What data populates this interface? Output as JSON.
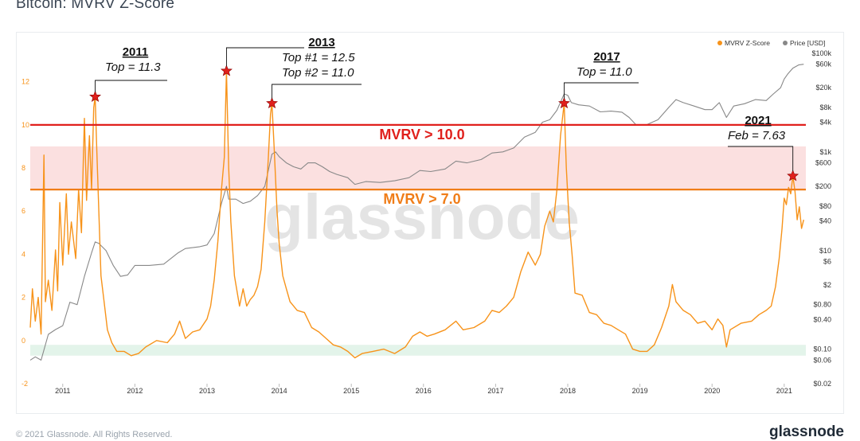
{
  "page": {
    "title": "Bitcoin: MVRV Z-Score",
    "watermark": "glassnode",
    "footer_copyright": "© 2021 Glassnode. All Rights Reserved.",
    "footer_brand": "glassnode"
  },
  "chart_data": {
    "type": "line",
    "title": "Bitcoin: MVRV Z-Score",
    "xlabel": "",
    "ylabel_left": "",
    "ylabel_right": "",
    "x_ticks": [
      "2011",
      "2012",
      "2013",
      "2014",
      "2015",
      "2016",
      "2017",
      "2018",
      "2019",
      "2020",
      "2021"
    ],
    "y_left_ticks": [
      -2,
      0,
      2,
      4,
      6,
      8,
      10,
      12
    ],
    "y_left_range": [
      -2,
      13.5
    ],
    "y_right_ticks": [
      "$100k",
      "$60k",
      "$20k",
      "$8k",
      "$4k",
      "$1k",
      "$600",
      "$200",
      "$80",
      "$40",
      "$10",
      "$6",
      "$2",
      "$0.80",
      "$0.40",
      "$0.10",
      "$0.06",
      "$0.02"
    ],
    "y_right_values": [
      100000,
      60000,
      20000,
      8000,
      4000,
      1000,
      600,
      200,
      80,
      40,
      10,
      6,
      2,
      0.8,
      0.4,
      0.1,
      0.06,
      0.02
    ],
    "y_right_range_log": [
      0.02,
      120000
    ],
    "x_range": [
      2010.55,
      2021.3
    ],
    "legend": {
      "placement": "top-right",
      "items": [
        {
          "name": "MVRV Z-Score",
          "color": "#f7931a"
        },
        {
          "name": "Price [USD]",
          "color": "#888888"
        }
      ]
    },
    "thresholds": [
      {
        "label": "MVRV > 10.0",
        "value": 10.0,
        "color": "#e0201c"
      },
      {
        "label": "MVRV > 7.0",
        "value": 7.0,
        "color": "#f07d18"
      }
    ],
    "bands": [
      {
        "from": 7.0,
        "to": 9.0,
        "color": "#fbe0e0"
      },
      {
        "from": -0.7,
        "to": -0.2,
        "color": "#e3f4ea"
      }
    ],
    "annotations": [
      {
        "year": "2011",
        "lines": [
          "Top = 11.3"
        ],
        "x": 2011.45,
        "y": 11.3
      },
      {
        "year": "2013",
        "lines": [
          "Top #1 = 12.5",
          "Top #2 = 11.0"
        ],
        "x": 2013.27,
        "y": 12.5
      },
      {
        "year": "",
        "lines": [],
        "x": 2013.9,
        "y": 11.0
      },
      {
        "year": "2017",
        "lines": [
          "Top = 11.0"
        ],
        "x": 2017.95,
        "y": 11.0
      },
      {
        "year": "2021",
        "lines": [
          "Feb = 7.63"
        ],
        "x": 2021.12,
        "y": 7.63
      }
    ],
    "series": [
      {
        "name": "MVRV Z-Score",
        "color": "#f7931a",
        "points": [
          [
            2010.55,
            0.6
          ],
          [
            2010.58,
            2.4
          ],
          [
            2010.62,
            0.9
          ],
          [
            2010.66,
            2.0
          ],
          [
            2010.7,
            0.3
          ],
          [
            2010.74,
            8.6
          ],
          [
            2010.76,
            1.8
          ],
          [
            2010.8,
            2.8
          ],
          [
            2010.85,
            1.4
          ],
          [
            2010.9,
            4.2
          ],
          [
            2010.93,
            2.3
          ],
          [
            2010.96,
            6.4
          ],
          [
            2011.0,
            3.5
          ],
          [
            2011.05,
            6.8
          ],
          [
            2011.08,
            4.0
          ],
          [
            2011.12,
            5.5
          ],
          [
            2011.18,
            3.8
          ],
          [
            2011.22,
            7.0
          ],
          [
            2011.26,
            5.0
          ],
          [
            2011.3,
            10.3
          ],
          [
            2011.33,
            6.5
          ],
          [
            2011.37,
            9.5
          ],
          [
            2011.4,
            7.0
          ],
          [
            2011.43,
            10.8
          ],
          [
            2011.45,
            11.3
          ],
          [
            2011.47,
            9.0
          ],
          [
            2011.5,
            6.0
          ],
          [
            2011.53,
            3.0
          ],
          [
            2011.57,
            1.9
          ],
          [
            2011.62,
            0.5
          ],
          [
            2011.68,
            -0.1
          ],
          [
            2011.75,
            -0.5
          ],
          [
            2011.85,
            -0.5
          ],
          [
            2011.95,
            -0.7
          ],
          [
            2012.05,
            -0.6
          ],
          [
            2012.15,
            -0.3
          ],
          [
            2012.3,
            0.0
          ],
          [
            2012.45,
            -0.1
          ],
          [
            2012.55,
            0.3
          ],
          [
            2012.62,
            0.9
          ],
          [
            2012.7,
            0.1
          ],
          [
            2012.8,
            0.4
          ],
          [
            2012.9,
            0.5
          ],
          [
            2013.0,
            1.0
          ],
          [
            2013.05,
            1.6
          ],
          [
            2013.1,
            2.8
          ],
          [
            2013.15,
            4.6
          ],
          [
            2013.2,
            7.0
          ],
          [
            2013.24,
            8.5
          ],
          [
            2013.27,
            12.5
          ],
          [
            2013.3,
            8.0
          ],
          [
            2013.33,
            5.5
          ],
          [
            2013.38,
            3.0
          ],
          [
            2013.45,
            1.6
          ],
          [
            2013.5,
            2.4
          ],
          [
            2013.55,
            1.6
          ],
          [
            2013.6,
            1.9
          ],
          [
            2013.65,
            2.1
          ],
          [
            2013.7,
            2.5
          ],
          [
            2013.75,
            3.3
          ],
          [
            2013.8,
            5.5
          ],
          [
            2013.85,
            8.5
          ],
          [
            2013.88,
            10.5
          ],
          [
            2013.9,
            11.0
          ],
          [
            2013.93,
            9.0
          ],
          [
            2013.97,
            6.0
          ],
          [
            2014.0,
            4.5
          ],
          [
            2014.05,
            3.0
          ],
          [
            2014.1,
            2.4
          ],
          [
            2014.15,
            1.8
          ],
          [
            2014.25,
            1.4
          ],
          [
            2014.35,
            1.3
          ],
          [
            2014.45,
            0.6
          ],
          [
            2014.55,
            0.4
          ],
          [
            2014.65,
            0.1
          ],
          [
            2014.75,
            -0.2
          ],
          [
            2014.85,
            -0.3
          ],
          [
            2014.95,
            -0.5
          ],
          [
            2015.05,
            -0.8
          ],
          [
            2015.15,
            -0.6
          ],
          [
            2015.3,
            -0.5
          ],
          [
            2015.45,
            -0.4
          ],
          [
            2015.6,
            -0.6
          ],
          [
            2015.75,
            -0.3
          ],
          [
            2015.85,
            0.2
          ],
          [
            2015.95,
            0.4
          ],
          [
            2016.05,
            0.2
          ],
          [
            2016.15,
            0.3
          ],
          [
            2016.3,
            0.5
          ],
          [
            2016.45,
            0.9
          ],
          [
            2016.55,
            0.5
          ],
          [
            2016.7,
            0.6
          ],
          [
            2016.85,
            0.9
          ],
          [
            2016.95,
            1.4
          ],
          [
            2017.05,
            1.3
          ],
          [
            2017.15,
            1.6
          ],
          [
            2017.25,
            2.0
          ],
          [
            2017.35,
            3.2
          ],
          [
            2017.45,
            4.1
          ],
          [
            2017.55,
            3.5
          ],
          [
            2017.62,
            4.0
          ],
          [
            2017.68,
            5.3
          ],
          [
            2017.75,
            6.0
          ],
          [
            2017.8,
            5.5
          ],
          [
            2017.85,
            7.0
          ],
          [
            2017.9,
            9.5
          ],
          [
            2017.95,
            11.0
          ],
          [
            2017.98,
            8.0
          ],
          [
            2018.02,
            5.5
          ],
          [
            2018.06,
            4.0
          ],
          [
            2018.1,
            2.2
          ],
          [
            2018.2,
            2.1
          ],
          [
            2018.3,
            1.3
          ],
          [
            2018.4,
            1.2
          ],
          [
            2018.5,
            0.8
          ],
          [
            2018.6,
            0.7
          ],
          [
            2018.7,
            0.5
          ],
          [
            2018.8,
            0.3
          ],
          [
            2018.9,
            -0.4
          ],
          [
            2019.0,
            -0.5
          ],
          [
            2019.1,
            -0.5
          ],
          [
            2019.2,
            -0.2
          ],
          [
            2019.3,
            0.6
          ],
          [
            2019.4,
            1.6
          ],
          [
            2019.45,
            2.6
          ],
          [
            2019.5,
            1.8
          ],
          [
            2019.6,
            1.4
          ],
          [
            2019.7,
            1.2
          ],
          [
            2019.8,
            0.8
          ],
          [
            2019.9,
            0.9
          ],
          [
            2020.0,
            0.5
          ],
          [
            2020.08,
            1.0
          ],
          [
            2020.15,
            0.7
          ],
          [
            2020.2,
            -0.3
          ],
          [
            2020.25,
            0.5
          ],
          [
            2020.4,
            0.8
          ],
          [
            2020.55,
            0.9
          ],
          [
            2020.65,
            1.2
          ],
          [
            2020.75,
            1.4
          ],
          [
            2020.82,
            1.6
          ],
          [
            2020.88,
            2.5
          ],
          [
            2020.93,
            3.8
          ],
          [
            2020.97,
            5.2
          ],
          [
            2021.0,
            6.6
          ],
          [
            2021.03,
            6.3
          ],
          [
            2021.06,
            7.1
          ],
          [
            2021.09,
            6.8
          ],
          [
            2021.12,
            7.63
          ],
          [
            2021.15,
            6.9
          ],
          [
            2021.18,
            5.6
          ],
          [
            2021.21,
            6.2
          ],
          [
            2021.24,
            5.2
          ],
          [
            2021.27,
            5.6
          ]
        ]
      },
      {
        "name": "Price [USD]",
        "color": "#888888",
        "points": [
          [
            2010.55,
            0.06
          ],
          [
            2010.62,
            0.07
          ],
          [
            2010.7,
            0.06
          ],
          [
            2010.8,
            0.2
          ],
          [
            2010.9,
            0.25
          ],
          [
            2011.0,
            0.3
          ],
          [
            2011.1,
            0.9
          ],
          [
            2011.2,
            0.8
          ],
          [
            2011.3,
            3.0
          ],
          [
            2011.4,
            9.0
          ],
          [
            2011.45,
            15.0
          ],
          [
            2011.5,
            14.0
          ],
          [
            2011.6,
            10.0
          ],
          [
            2011.7,
            5.0
          ],
          [
            2011.8,
            3.0
          ],
          [
            2011.9,
            3.2
          ],
          [
            2012.0,
            5.0
          ],
          [
            2012.2,
            5.0
          ],
          [
            2012.4,
            5.3
          ],
          [
            2012.6,
            9.0
          ],
          [
            2012.7,
            11.0
          ],
          [
            2012.9,
            12.0
          ],
          [
            2013.0,
            13.0
          ],
          [
            2013.1,
            22.0
          ],
          [
            2013.2,
            90.0
          ],
          [
            2013.27,
            200.0
          ],
          [
            2013.3,
            110.0
          ],
          [
            2013.4,
            110.0
          ],
          [
            2013.5,
            90.0
          ],
          [
            2013.6,
            100.0
          ],
          [
            2013.7,
            130.0
          ],
          [
            2013.8,
            200.0
          ],
          [
            2013.9,
            900.0
          ],
          [
            2013.95,
            1000.0
          ],
          [
            2014.0,
            800.0
          ],
          [
            2014.1,
            600.0
          ],
          [
            2014.2,
            500.0
          ],
          [
            2014.3,
            450.0
          ],
          [
            2014.4,
            600.0
          ],
          [
            2014.5,
            600.0
          ],
          [
            2014.6,
            500.0
          ],
          [
            2014.7,
            400.0
          ],
          [
            2014.8,
            350.0
          ],
          [
            2014.95,
            300.0
          ],
          [
            2015.05,
            220.0
          ],
          [
            2015.2,
            250.0
          ],
          [
            2015.4,
            240.0
          ],
          [
            2015.6,
            260.0
          ],
          [
            2015.8,
            300.0
          ],
          [
            2015.95,
            420.0
          ],
          [
            2016.1,
            400.0
          ],
          [
            2016.3,
            450.0
          ],
          [
            2016.45,
            650.0
          ],
          [
            2016.6,
            600.0
          ],
          [
            2016.8,
            700.0
          ],
          [
            2016.95,
            950.0
          ],
          [
            2017.1,
            1000.0
          ],
          [
            2017.25,
            1200.0
          ],
          [
            2017.4,
            2000.0
          ],
          [
            2017.55,
            2500.0
          ],
          [
            2017.65,
            4000.0
          ],
          [
            2017.75,
            4500.0
          ],
          [
            2017.85,
            7000.0
          ],
          [
            2017.95,
            15000.0
          ],
          [
            2018.0,
            14000.0
          ],
          [
            2018.05,
            10000.0
          ],
          [
            2018.15,
            9000.0
          ],
          [
            2018.3,
            8500.0
          ],
          [
            2018.45,
            6500.0
          ],
          [
            2018.6,
            6700.0
          ],
          [
            2018.75,
            6400.0
          ],
          [
            2018.85,
            5000.0
          ],
          [
            2018.95,
            3500.0
          ],
          [
            2019.1,
            3600.0
          ],
          [
            2019.25,
            4500.0
          ],
          [
            2019.4,
            8000.0
          ],
          [
            2019.5,
            11500.0
          ],
          [
            2019.6,
            10000.0
          ],
          [
            2019.75,
            8500.0
          ],
          [
            2019.9,
            7200.0
          ],
          [
            2020.0,
            7200.0
          ],
          [
            2020.1,
            10000.0
          ],
          [
            2020.2,
            5000.0
          ],
          [
            2020.3,
            8500.0
          ],
          [
            2020.45,
            9500.0
          ],
          [
            2020.6,
            11500.0
          ],
          [
            2020.75,
            11000.0
          ],
          [
            2020.85,
            15000.0
          ],
          [
            2020.95,
            20000.0
          ],
          [
            2021.0,
            30000.0
          ],
          [
            2021.05,
            38000.0
          ],
          [
            2021.12,
            50000.0
          ],
          [
            2021.2,
            58000.0
          ],
          [
            2021.27,
            60000.0
          ]
        ]
      }
    ]
  }
}
